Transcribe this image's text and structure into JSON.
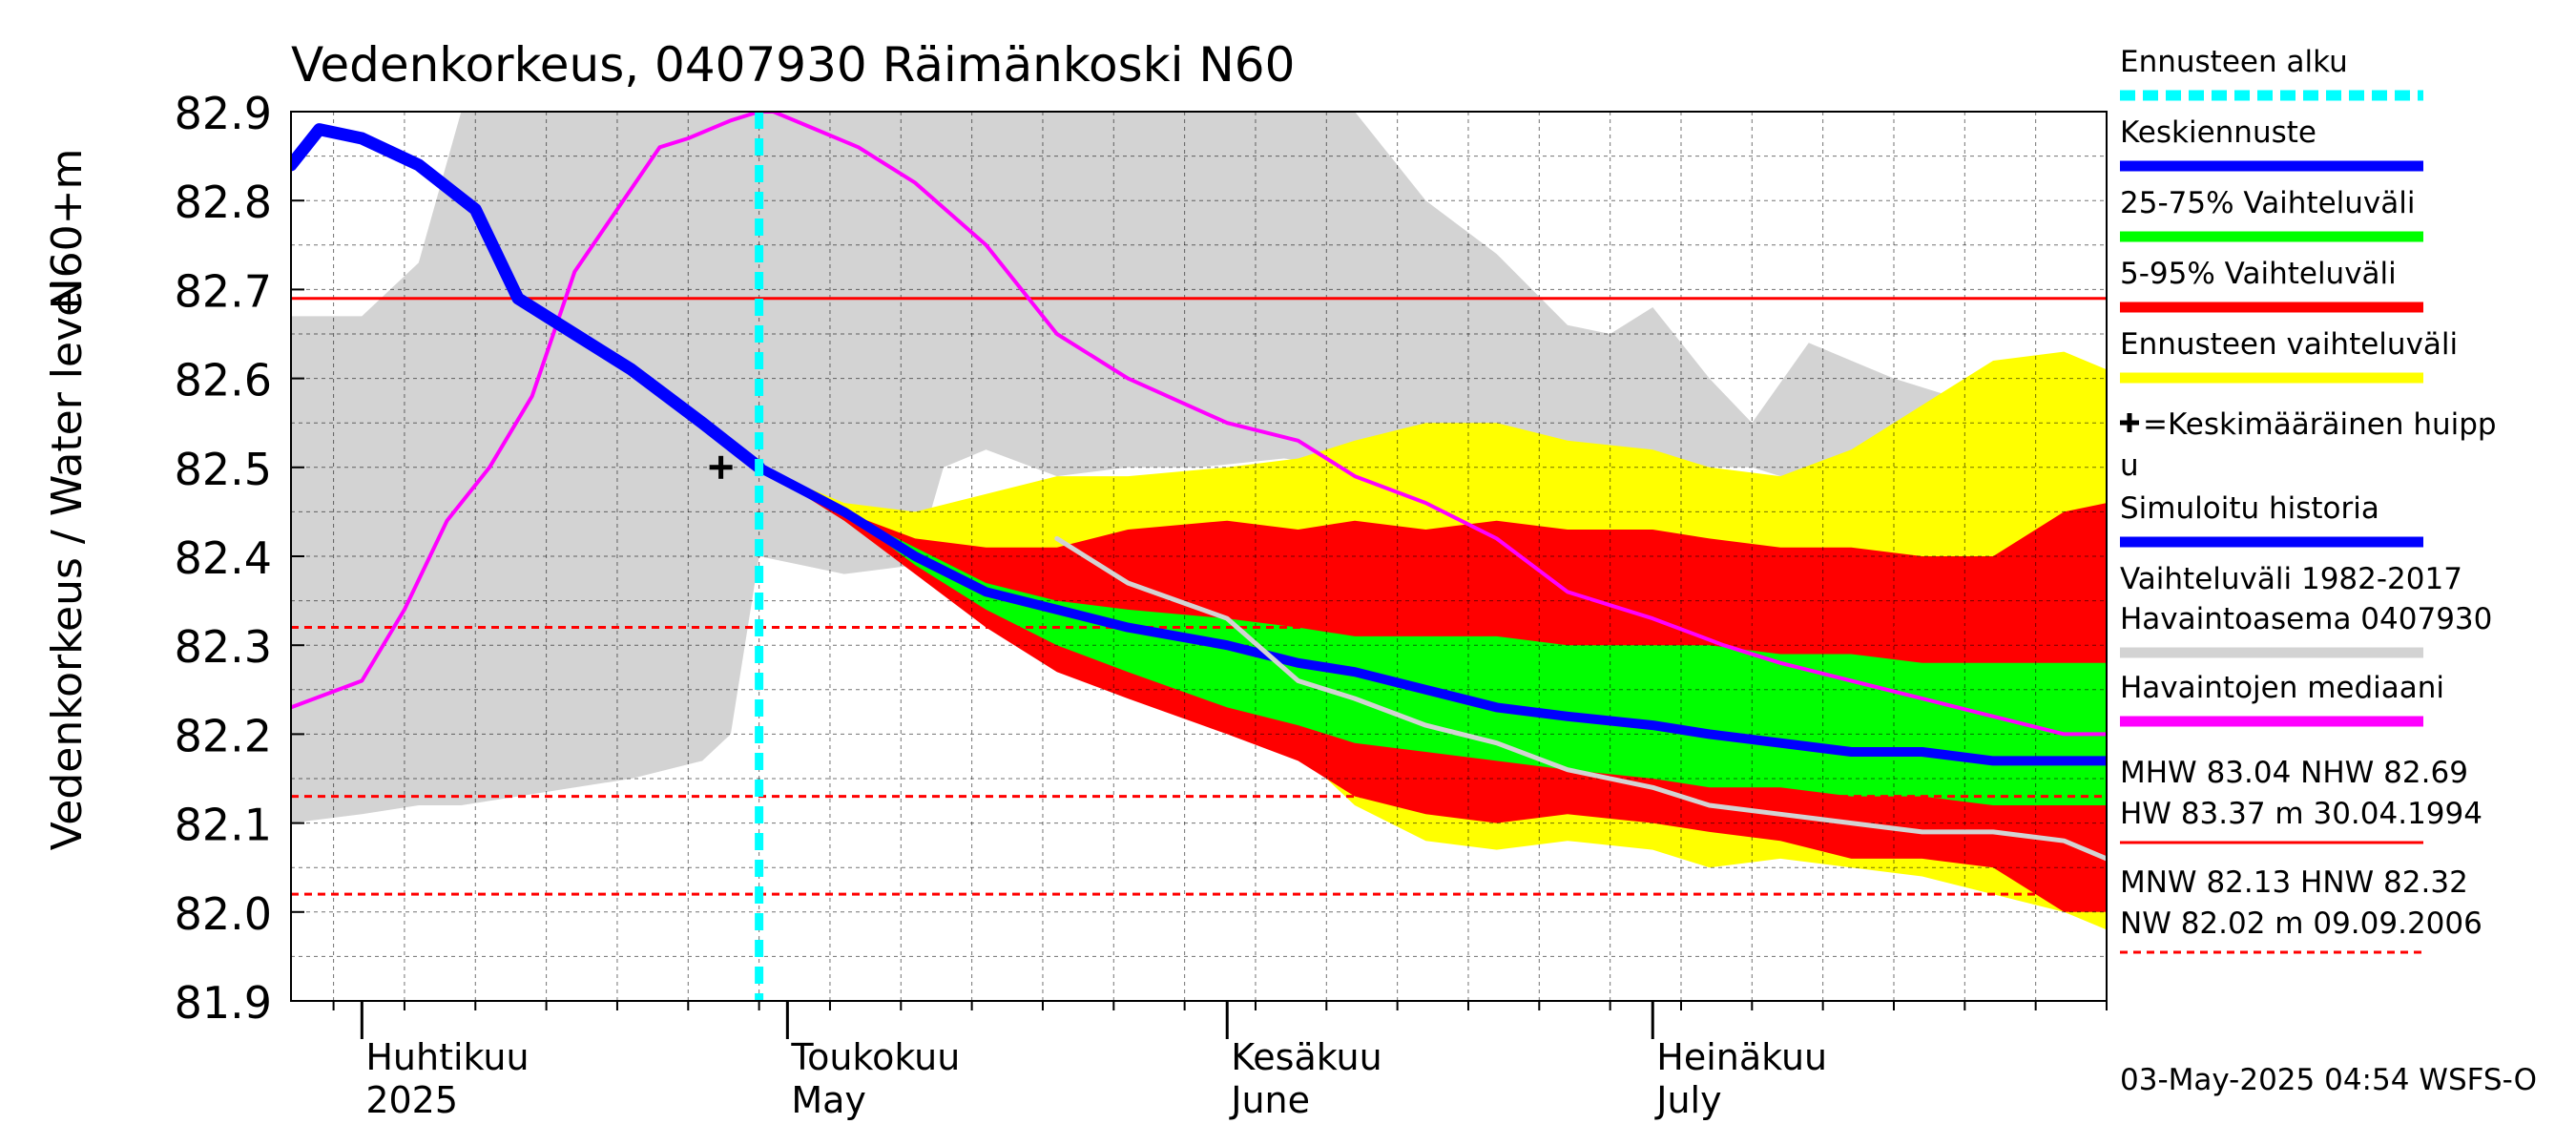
{
  "chart_data": {
    "type": "area",
    "title": "Vedenkorkeus, 0407930 Räimänkoski N60",
    "ylabel": "Vedenkorkeus / Water level",
    "yunit": "N60+m",
    "ylim": [
      81.9,
      82.9
    ],
    "yticks": [
      "82.9",
      "82.8",
      "82.7",
      "82.6",
      "82.5",
      "82.4",
      "82.3",
      "82.2",
      "82.1",
      "82.0",
      "81.9"
    ],
    "xlim": [
      "2025-03-27",
      "2025-08-02"
    ],
    "grid": true,
    "month_labels": [
      {
        "date": "2025-04-01",
        "fi": "Huhtikuu",
        "en": "2025"
      },
      {
        "date": "2025-05-01",
        "fi": "Toukokuu",
        "en": "May"
      },
      {
        "date": "2025-06-01",
        "fi": "Kesäkuu",
        "en": "June"
      },
      {
        "date": "2025-07-01",
        "fi": "Heinäkuu",
        "en": "July"
      }
    ],
    "forecast_start": "2025-04-29",
    "mean_peak": {
      "date": "2025-04-29",
      "value": 82.5
    },
    "ref_lines": [
      {
        "name": "NHW",
        "value": 82.69,
        "style": "solid"
      },
      {
        "name": "HNW",
        "value": 82.32,
        "style": "dashed"
      },
      {
        "name": "MNW",
        "value": 82.13,
        "style": "dashed"
      },
      {
        "name": "NW",
        "value": 82.02,
        "style": "dashed"
      }
    ],
    "series": [
      {
        "name": "Vaihteluväli 1982-2017 Havaintoasema 0407930",
        "kind": "band",
        "color": "#d3d3d3",
        "x": [
          "2025-03-27",
          "2025-04-01",
          "2025-04-05",
          "2025-04-08",
          "2025-04-12",
          "2025-04-20",
          "2025-04-25",
          "2025-04-27",
          "2025-04-29",
          "2025-05-02",
          "2025-05-05",
          "2025-05-10",
          "2025-05-12",
          "2025-05-15",
          "2025-05-20",
          "2025-05-25",
          "2025-05-30",
          "2025-06-05",
          "2025-06-10",
          "2025-06-15",
          "2025-06-20",
          "2025-06-25",
          "2025-06-28",
          "2025-07-01",
          "2025-07-05",
          "2025-07-08",
          "2025-07-12",
          "2025-07-15",
          "2025-07-18",
          "2025-07-22",
          "2025-07-26",
          "2025-07-30",
          "2025-08-02"
        ],
        "upper": [
          82.67,
          82.67,
          82.73,
          82.9,
          82.9,
          82.9,
          82.9,
          82.9,
          82.9,
          82.9,
          82.9,
          82.9,
          82.9,
          82.9,
          82.9,
          82.9,
          82.9,
          82.9,
          82.9,
          82.8,
          82.74,
          82.66,
          82.65,
          82.68,
          82.6,
          82.55,
          82.64,
          82.62,
          82.6,
          82.58,
          82.57,
          82.6,
          82.6
        ],
        "lower": [
          82.1,
          82.11,
          82.12,
          82.12,
          82.13,
          82.15,
          82.17,
          82.2,
          82.4,
          82.39,
          82.38,
          82.39,
          82.5,
          82.52,
          82.49,
          82.5,
          82.5,
          82.51,
          82.5,
          82.5,
          82.5,
          82.5,
          82.5,
          82.5,
          82.5,
          82.5,
          82.48,
          82.5,
          82.5,
          82.52,
          82.54,
          82.55,
          82.56
        ]
      },
      {
        "name": "Ennusteen vaihteluväli",
        "kind": "band",
        "color": "#ffff00",
        "x": [
          "2025-04-29",
          "2025-05-05",
          "2025-05-10",
          "2025-05-15",
          "2025-05-20",
          "2025-05-25",
          "2025-06-01",
          "2025-06-06",
          "2025-06-10",
          "2025-06-15",
          "2025-06-20",
          "2025-06-25",
          "2025-07-01",
          "2025-07-05",
          "2025-07-10",
          "2025-07-15",
          "2025-07-20",
          "2025-07-25",
          "2025-07-30",
          "2025-08-02"
        ],
        "upper": [
          82.5,
          82.46,
          82.45,
          82.47,
          82.49,
          82.49,
          82.5,
          82.51,
          82.53,
          82.55,
          82.55,
          82.53,
          82.52,
          82.5,
          82.49,
          82.52,
          82.57,
          82.62,
          82.63,
          82.61
        ],
        "lower": [
          82.5,
          82.45,
          82.4,
          82.33,
          82.29,
          82.26,
          82.22,
          82.18,
          82.12,
          82.08,
          82.07,
          82.08,
          82.07,
          82.05,
          82.06,
          82.05,
          82.04,
          82.02,
          82.0,
          81.98
        ]
      },
      {
        "name": "5-95% Vaihteluväli",
        "kind": "band",
        "color": "#ff0000",
        "x": [
          "2025-04-29",
          "2025-05-05",
          "2025-05-10",
          "2025-05-15",
          "2025-05-20",
          "2025-05-25",
          "2025-06-01",
          "2025-06-06",
          "2025-06-10",
          "2025-06-15",
          "2025-06-20",
          "2025-06-25",
          "2025-07-01",
          "2025-07-05",
          "2025-07-10",
          "2025-07-15",
          "2025-07-20",
          "2025-07-25",
          "2025-07-30",
          "2025-08-02"
        ],
        "upper": [
          82.5,
          82.45,
          82.42,
          82.41,
          82.41,
          82.43,
          82.44,
          82.43,
          82.44,
          82.43,
          82.44,
          82.43,
          82.43,
          82.42,
          82.41,
          82.41,
          82.4,
          82.4,
          82.45,
          82.46
        ],
        "lower": [
          82.5,
          82.44,
          82.38,
          82.32,
          82.27,
          82.24,
          82.2,
          82.17,
          82.13,
          82.11,
          82.1,
          82.11,
          82.1,
          82.09,
          82.08,
          82.06,
          82.06,
          82.05,
          82.0,
          82.0
        ]
      },
      {
        "name": "25-75% Vaihteluväli",
        "kind": "band",
        "color": "#00ff00",
        "x": [
          "2025-04-29",
          "2025-05-05",
          "2025-05-10",
          "2025-05-15",
          "2025-05-20",
          "2025-05-25",
          "2025-06-01",
          "2025-06-06",
          "2025-06-10",
          "2025-06-15",
          "2025-06-20",
          "2025-06-25",
          "2025-07-01",
          "2025-07-05",
          "2025-07-10",
          "2025-07-15",
          "2025-07-20",
          "2025-07-25",
          "2025-07-30",
          "2025-08-02"
        ],
        "upper": [
          82.5,
          82.45,
          82.41,
          82.37,
          82.35,
          82.34,
          82.33,
          82.32,
          82.31,
          82.31,
          82.31,
          82.3,
          82.3,
          82.3,
          82.29,
          82.29,
          82.28,
          82.28,
          82.28,
          82.28
        ],
        "lower": [
          82.5,
          82.45,
          82.39,
          82.34,
          82.3,
          82.27,
          82.23,
          82.21,
          82.19,
          82.18,
          82.17,
          82.16,
          82.15,
          82.14,
          82.14,
          82.13,
          82.13,
          82.12,
          82.12,
          82.12
        ]
      },
      {
        "name": "Havaintojen mediaani",
        "kind": "line",
        "color": "#ff00ff",
        "x": [
          "2025-03-27",
          "2025-04-01",
          "2025-04-04",
          "2025-04-07",
          "2025-04-10",
          "2025-04-13",
          "2025-04-16",
          "2025-04-19",
          "2025-04-22",
          "2025-04-24",
          "2025-04-27",
          "2025-04-29",
          "2025-04-30",
          "2025-05-03",
          "2025-05-06",
          "2025-05-10",
          "2025-05-15",
          "2025-05-20",
          "2025-05-25",
          "2025-06-01",
          "2025-06-06",
          "2025-06-10",
          "2025-06-15",
          "2025-06-20",
          "2025-06-25",
          "2025-07-01",
          "2025-07-06",
          "2025-07-10",
          "2025-07-15",
          "2025-07-20",
          "2025-07-25",
          "2025-07-30",
          "2025-08-02"
        ],
        "y": [
          82.23,
          82.26,
          82.34,
          82.44,
          82.5,
          82.58,
          82.72,
          82.79,
          82.86,
          82.87,
          82.89,
          82.9,
          82.9,
          82.88,
          82.86,
          82.82,
          82.75,
          82.65,
          82.6,
          82.55,
          82.53,
          82.49,
          82.46,
          82.42,
          82.36,
          82.33,
          82.3,
          82.28,
          82.26,
          82.24,
          82.22,
          82.2,
          82.2
        ]
      },
      {
        "name": "Simuloitu historia",
        "kind": "line",
        "color": "#0000ff",
        "x": [
          "2025-03-27",
          "2025-03-29",
          "2025-04-01",
          "2025-04-05",
          "2025-04-09",
          "2025-04-12",
          "2025-04-15",
          "2025-04-20",
          "2025-04-25",
          "2025-04-29"
        ],
        "y": [
          82.84,
          82.88,
          82.87,
          82.84,
          82.79,
          82.69,
          82.66,
          82.61,
          82.55,
          82.5
        ]
      },
      {
        "name": "Keskiennuste",
        "kind": "line",
        "color": "#0000ff",
        "x": [
          "2025-04-29",
          "2025-05-05",
          "2025-05-10",
          "2025-05-15",
          "2025-05-20",
          "2025-05-25",
          "2025-06-01",
          "2025-06-06",
          "2025-06-10",
          "2025-06-15",
          "2025-06-20",
          "2025-06-25",
          "2025-07-01",
          "2025-07-05",
          "2025-07-10",
          "2025-07-15",
          "2025-07-20",
          "2025-07-25",
          "2025-07-30",
          "2025-08-02"
        ],
        "y": [
          82.5,
          82.45,
          82.4,
          82.36,
          82.34,
          82.32,
          82.3,
          82.28,
          82.27,
          82.25,
          82.23,
          82.22,
          82.21,
          82.2,
          82.19,
          82.18,
          82.18,
          82.17,
          82.17,
          82.17
        ]
      },
      {
        "name": "gray-sim",
        "kind": "line",
        "color": "#d3d3d3",
        "x": [
          "2025-05-20",
          "2025-05-25",
          "2025-06-01",
          "2025-06-06",
          "2025-06-10",
          "2025-06-15",
          "2025-06-20",
          "2025-06-25",
          "2025-07-01",
          "2025-07-05",
          "2025-07-10",
          "2025-07-15",
          "2025-07-20",
          "2025-07-25",
          "2025-07-30",
          "2025-08-02"
        ],
        "y": [
          82.42,
          82.37,
          82.33,
          82.26,
          82.24,
          82.21,
          82.19,
          82.16,
          82.14,
          82.12,
          82.11,
          82.1,
          82.09,
          82.09,
          82.08,
          82.06
        ]
      }
    ]
  },
  "legend": {
    "items": [
      {
        "label": "Ennusteen alku",
        "color": "#00ffff",
        "style": "dashed"
      },
      {
        "label": "Keskiennuste",
        "color": "#0000ff",
        "style": "solid"
      },
      {
        "label": "25-75% Vaihteluväli",
        "color": "#00ff00",
        "style": "solid"
      },
      {
        "label": "5-95% Vaihteluväli",
        "color": "#ff0000",
        "style": "solid"
      },
      {
        "label": "Ennusteen vaihteluväli",
        "color": "#ffff00",
        "style": "solid"
      },
      {
        "label": "=Keskimääräinen huipp",
        "label2": "u",
        "marker": "+"
      },
      {
        "label": "Simuloitu historia",
        "color": "#0000ff",
        "style": "solid"
      },
      {
        "label": "Vaihteluväli 1982-2017",
        "label2": " Havaintoasema 0407930",
        "color": "#d3d3d3",
        "style": "solid"
      },
      {
        "label": "Havaintojen mediaani",
        "color": "#ff00ff",
        "style": "solid"
      }
    ],
    "stats1": [
      "MHW  83.04 NHW  82.69",
      "HW  83.37 m 30.04.1994"
    ],
    "stats2": [
      "MNW  82.13 HNW  82.32",
      "NW  82.02 m 09.09.2006"
    ]
  },
  "footer": "03-May-2025 04:54 WSFS-O"
}
